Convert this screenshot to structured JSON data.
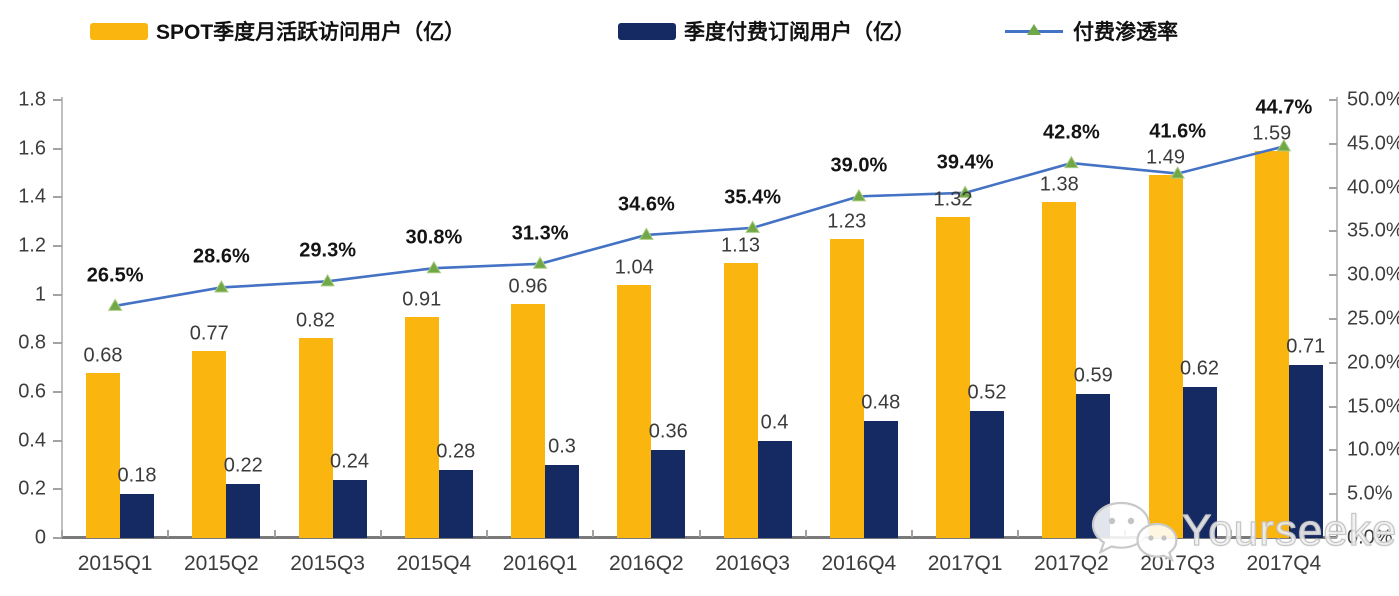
{
  "legend": [
    {
      "label": "SPOT季度月活跃访问用户（亿）",
      "type": "bar",
      "color": "#FBB50F"
    },
    {
      "label": "季度付费订阅用户（亿）",
      "type": "bar",
      "color": "#152A62"
    },
    {
      "label": "付费渗透率",
      "type": "line",
      "color": "#4472C4",
      "marker_color": "#71A847"
    }
  ],
  "chart_data": {
    "type": "combo: grouped bar + line",
    "categories": [
      "2015Q1",
      "2015Q2",
      "2015Q3",
      "2015Q4",
      "2016Q1",
      "2016Q2",
      "2016Q3",
      "2016Q4",
      "2017Q1",
      "2017Q2",
      "2017Q3",
      "2017Q4"
    ],
    "series": [
      {
        "name": "SPOT季度月活跃访问用户（亿）",
        "type": "bar",
        "axis": "left",
        "color": "#FBB50F",
        "values": [
          0.68,
          0.77,
          0.82,
          0.91,
          0.96,
          1.04,
          1.13,
          1.23,
          1.32,
          1.38,
          1.49,
          1.59
        ]
      },
      {
        "name": "季度付费订阅用户（亿）",
        "type": "bar",
        "axis": "left",
        "color": "#152A62",
        "values": [
          0.18,
          0.22,
          0.24,
          0.28,
          0.3,
          0.36,
          0.4,
          0.48,
          0.52,
          0.59,
          0.62,
          0.71
        ]
      },
      {
        "name": "付费渗透率",
        "type": "line",
        "axis": "right",
        "color": "#4472C4",
        "marker": "triangle",
        "marker_color": "#71A847",
        "values": [
          26.5,
          28.6,
          29.3,
          30.8,
          31.3,
          34.6,
          35.4,
          39.0,
          39.4,
          42.8,
          41.6,
          44.7
        ],
        "labels": [
          "26.5%",
          "28.6%",
          "29.3%",
          "30.8%",
          "31.3%",
          "34.6%",
          "35.4%",
          "39.0%",
          "39.4%",
          "42.8%",
          "41.6%",
          "44.7%"
        ]
      }
    ],
    "left_axis": {
      "min": 0,
      "max": 1.8,
      "step": 0.2,
      "tick_labels": [
        "0",
        "0.2",
        "0.4",
        "0.6",
        "0.8",
        "1",
        "1.2",
        "1.4",
        "1.6",
        "1.8"
      ]
    },
    "right_axis": {
      "min": 0,
      "max": 50,
      "step": 5,
      "tick_labels": [
        "0.0%",
        "5.0%",
        "10.0%",
        "15.0%",
        "20.0%",
        "25.0%",
        "30.0%",
        "35.0%",
        "40.0%",
        "45.0%",
        "50.0%"
      ]
    },
    "grid": false,
    "legend_position": "top"
  },
  "watermark": {
    "text": "Yourseeker",
    "icon": "wechat-icon"
  }
}
